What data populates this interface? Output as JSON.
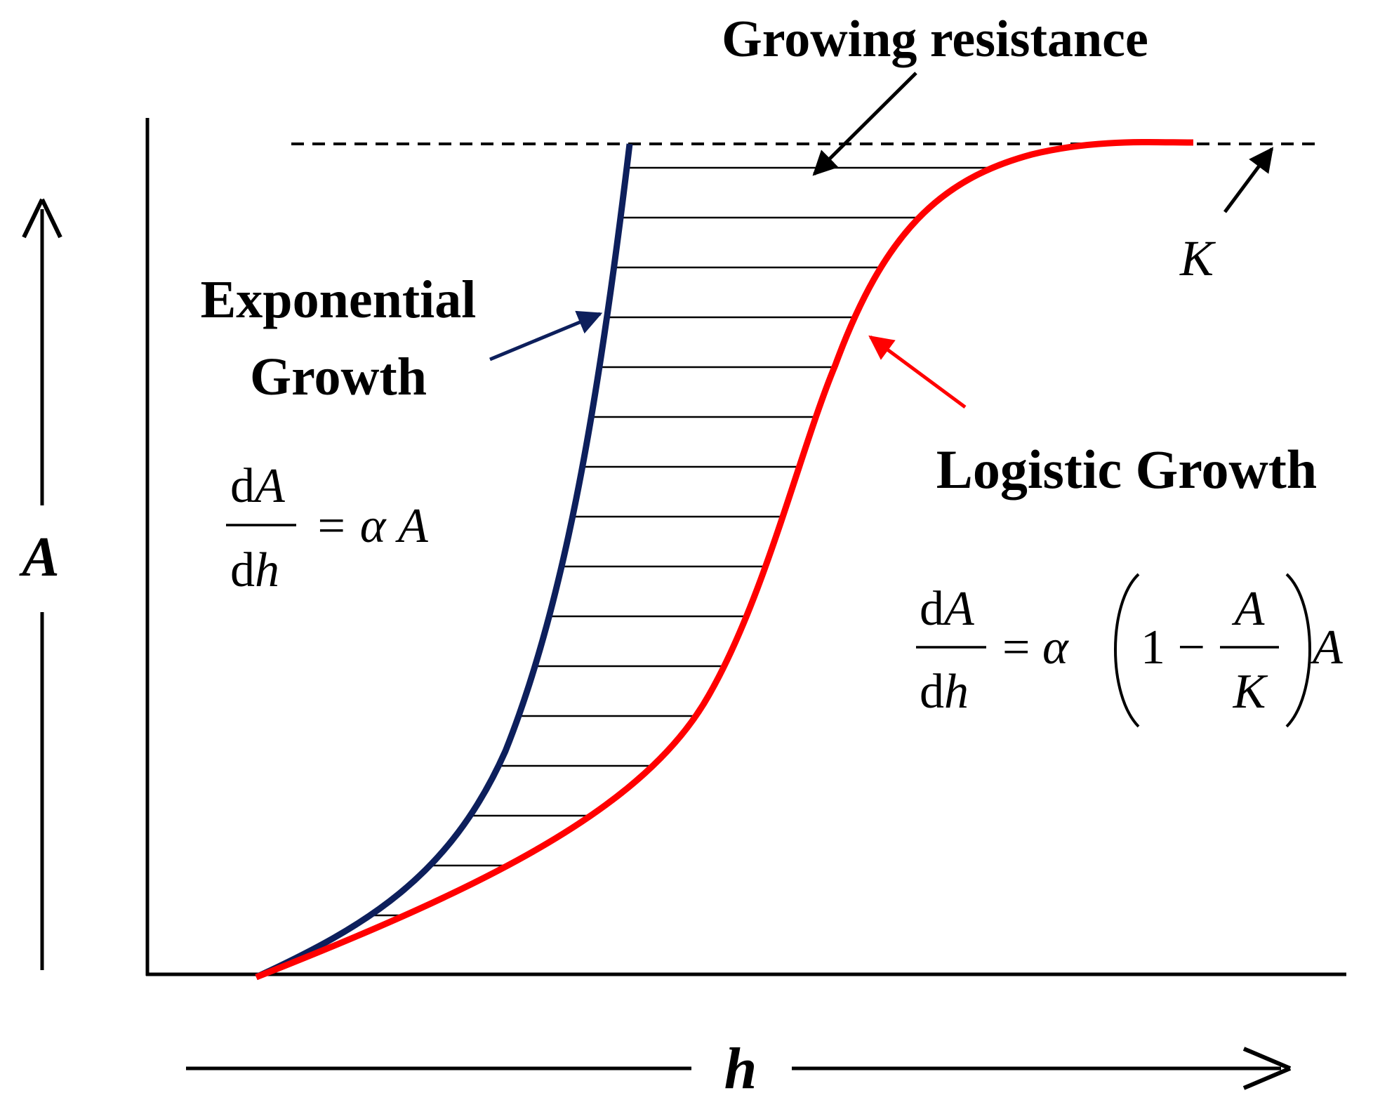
{
  "title_annotation": "Growing resistance",
  "exponential": {
    "label_line1": "Exponential",
    "label_line2": "Growth",
    "eq_num_d": "d",
    "eq_num_var": "A",
    "eq_den_d": "d",
    "eq_den_var": "h",
    "eq_rhs": "= α A",
    "color": "#0d1f5c"
  },
  "logistic": {
    "label": "Logistic Growth",
    "eq_num_d": "d",
    "eq_num_var": "A",
    "eq_den_d": "d",
    "eq_den_var": "h",
    "eq_equals_alpha": "= α",
    "eq_one_minus": "1 −",
    "eq_frac_num": "A",
    "eq_frac_den": "K",
    "eq_tail": "A",
    "color": "#ff0000"
  },
  "carrying_capacity_label": "K",
  "axis_y_label": "A",
  "axis_x_label": "h",
  "hatch_color": "#000000"
}
